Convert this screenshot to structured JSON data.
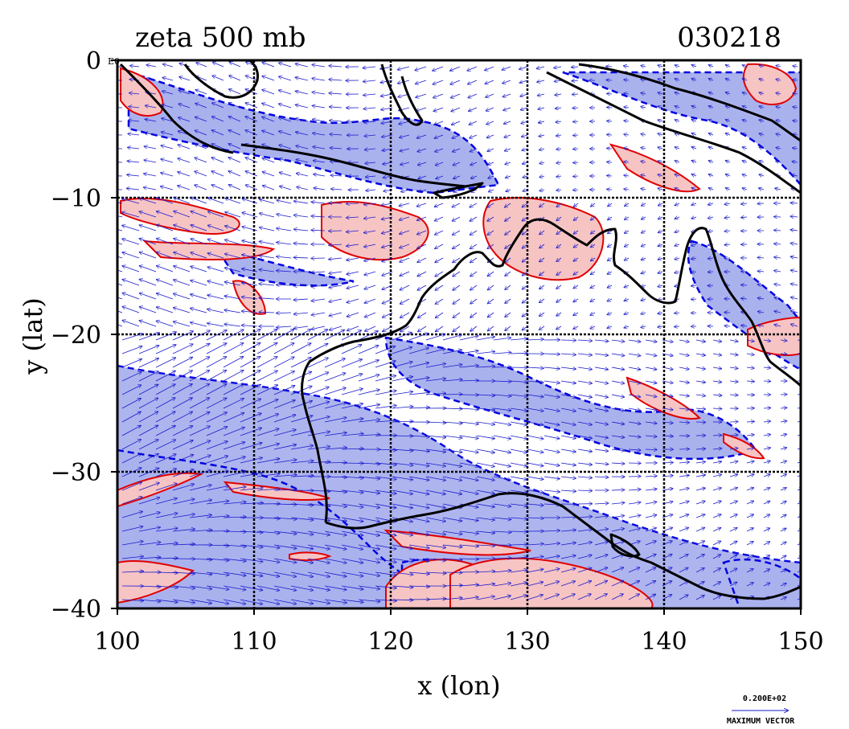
{
  "figure": {
    "title": "zeta 500 mb",
    "date_code": "030218",
    "xlabel": "x (lon)",
    "ylabel": "y (lat)",
    "x_ticks": [
      "100",
      "110",
      "120",
      "130",
      "140",
      "150"
    ],
    "y_ticks": [
      "0",
      "−10",
      "−20",
      "−30",
      "−40"
    ],
    "corner_note": "E0",
    "ref_vector_value": "0.200E+02",
    "ref_vector_caption": "MAXIMUM VECTOR"
  },
  "map_data": {
    "type": "contour-vector-map",
    "lon_range": [
      100,
      150
    ],
    "lat_range": [
      -40,
      0
    ],
    "grid_lon": [
      110,
      120,
      130,
      140
    ],
    "grid_lat": [
      -10,
      -20,
      -30
    ],
    "colors": {
      "positive_line": "#e00000",
      "positive_fill": "#f7c4c4",
      "negative_line": "#0000e0",
      "negative_fill": "#aab2ee",
      "vector": "#1a1acc",
      "coast": "#000000"
    }
  }
}
